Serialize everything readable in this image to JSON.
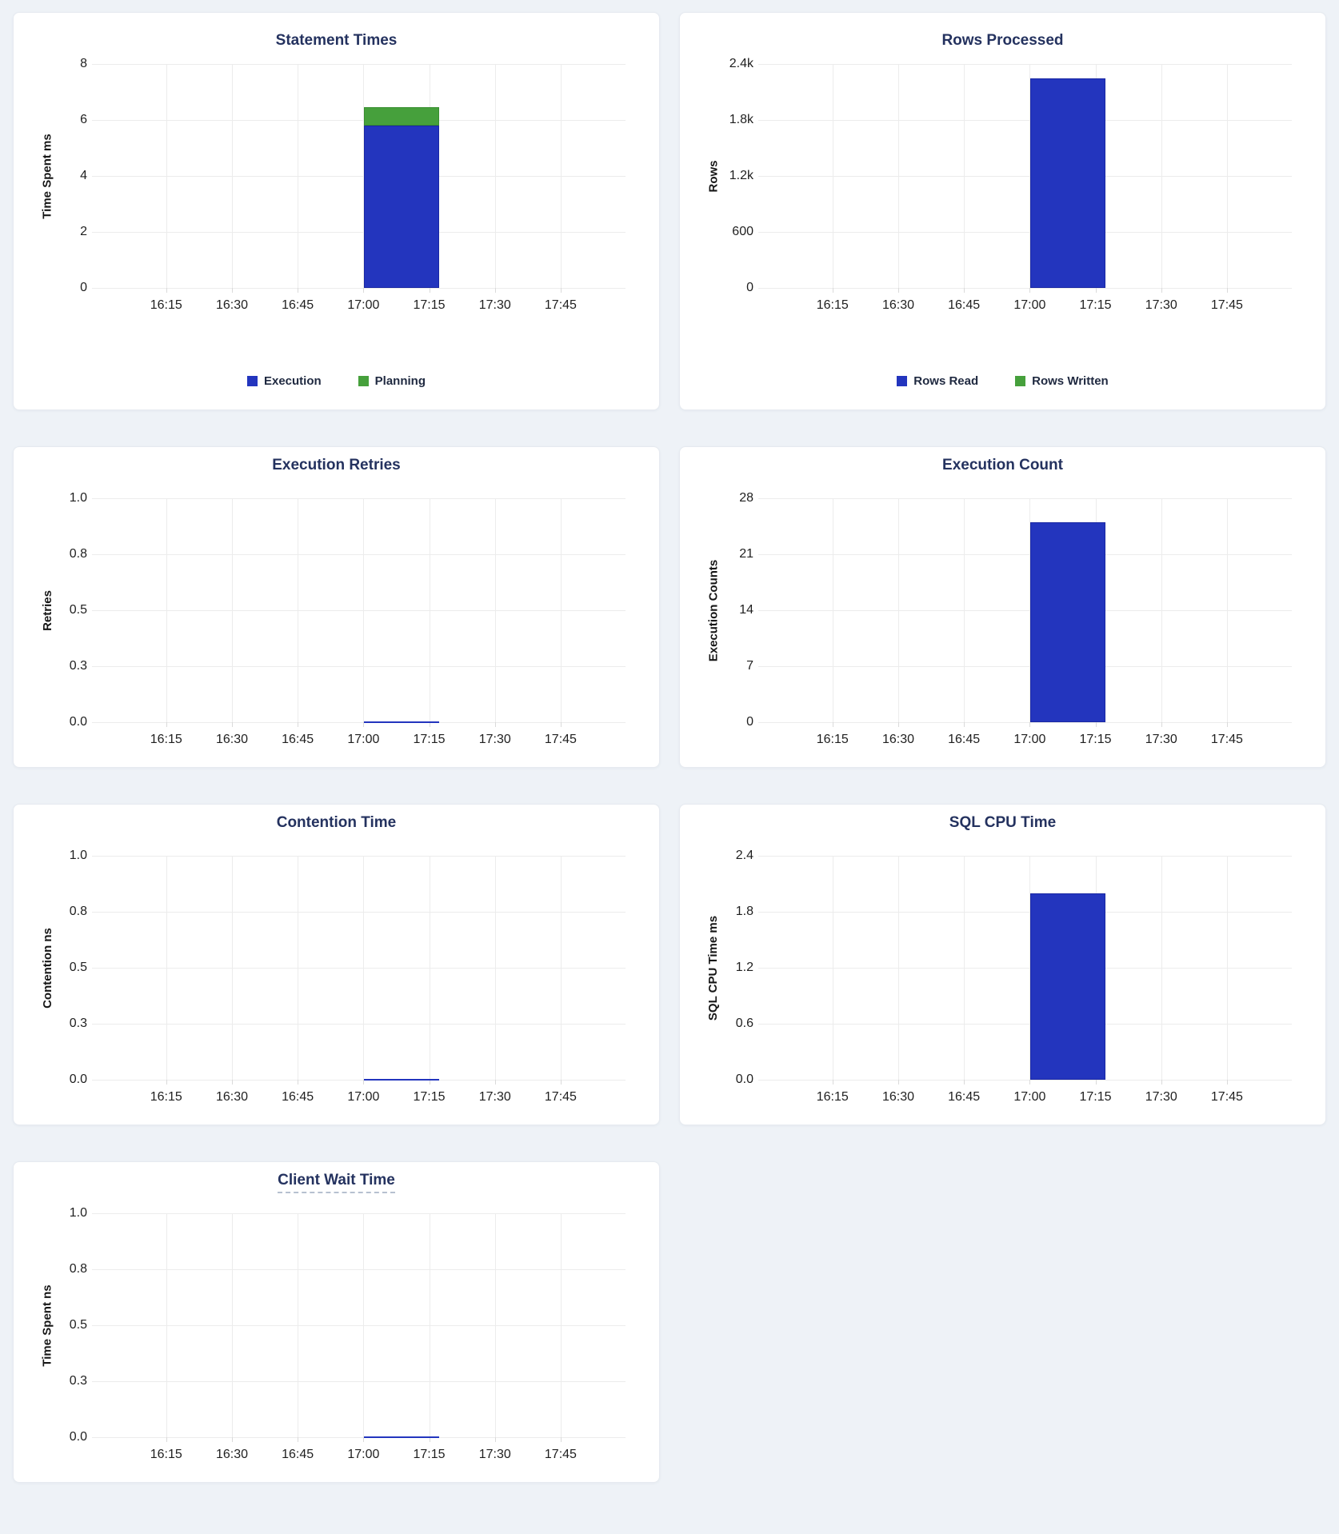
{
  "page": {
    "background": "#eef2f7"
  },
  "colors": {
    "bar_blue": "#2335be",
    "bar_blue_border": "#1a28a3",
    "bar_green": "#46a03c",
    "bar_green_border": "#388e30",
    "title_navy": "#24325f",
    "gridline": "#ececec"
  },
  "chart_data": [
    {
      "type": "bar",
      "title": "Statement Times",
      "ylabel": "Time Spent ms",
      "xlabel": "",
      "y_max": 8,
      "y_ticks": [
        "8",
        "6",
        "4",
        "2",
        "0"
      ],
      "x_ticks": [
        "16:15",
        "16:30",
        "16:45",
        "17:00",
        "17:15",
        "17:30",
        "17:45"
      ],
      "x_start": "17:00",
      "x_end": "17:17",
      "stacked": true,
      "grid": true,
      "legend_position": "bottom",
      "legend": [
        "Execution",
        "Planning"
      ],
      "series": [
        {
          "name": "Execution",
          "value": 5.8,
          "color": "#2335be",
          "border": "#1a28a3"
        },
        {
          "name": "Planning",
          "value": 0.65,
          "color": "#46a03c",
          "border": "#388e30"
        }
      ]
    },
    {
      "type": "bar",
      "title": "Rows Processed",
      "ylabel": "Rows",
      "xlabel": "",
      "y_max": 2400,
      "y_ticks": [
        "2.4k",
        "1.8k",
        "1.2k",
        "600",
        "0"
      ],
      "x_ticks": [
        "16:15",
        "16:30",
        "16:45",
        "17:00",
        "17:15",
        "17:30",
        "17:45"
      ],
      "x_start": "17:00",
      "x_end": "17:17",
      "stacked": true,
      "grid": true,
      "legend_position": "bottom",
      "legend": [
        "Rows Read",
        "Rows Written"
      ],
      "series": [
        {
          "name": "Rows Read",
          "value": 2250,
          "color": "#2335be",
          "border": "#1a28a3"
        },
        {
          "name": "Rows Written",
          "value": 0,
          "color": "#46a03c",
          "border": "#388e30"
        }
      ]
    },
    {
      "type": "line",
      "title": "Execution Retries",
      "ylabel": "Retries",
      "xlabel": "",
      "y_max": 1.0,
      "y_ticks": [
        "1.0",
        "0.8",
        "0.5",
        "0.3",
        "0.0"
      ],
      "x_ticks": [
        "16:15",
        "16:30",
        "16:45",
        "17:00",
        "17:15",
        "17:30",
        "17:45"
      ],
      "x_start": "17:00",
      "x_end": "17:17",
      "grid": true,
      "series": [
        {
          "name": "Retries",
          "value": 0,
          "color": "#2335be"
        }
      ]
    },
    {
      "type": "bar",
      "title": "Execution Count",
      "ylabel": "Execution Counts",
      "xlabel": "",
      "y_max": 28,
      "y_ticks": [
        "28",
        "21",
        "14",
        "7",
        "0"
      ],
      "x_ticks": [
        "16:15",
        "16:30",
        "16:45",
        "17:00",
        "17:15",
        "17:30",
        "17:45"
      ],
      "x_start": "17:00",
      "x_end": "17:17",
      "stacked": false,
      "grid": true,
      "series": [
        {
          "name": "Execution Count",
          "value": 25,
          "color": "#2335be",
          "border": "#1a28a3"
        }
      ]
    },
    {
      "type": "line",
      "title": "Contention Time",
      "ylabel": "Contention ns",
      "xlabel": "",
      "y_max": 1.0,
      "y_ticks": [
        "1.0",
        "0.8",
        "0.5",
        "0.3",
        "0.0"
      ],
      "x_ticks": [
        "16:15",
        "16:30",
        "16:45",
        "17:00",
        "17:15",
        "17:30",
        "17:45"
      ],
      "x_start": "17:00",
      "x_end": "17:17",
      "grid": true,
      "series": [
        {
          "name": "Contention",
          "value": 0,
          "color": "#2335be"
        }
      ]
    },
    {
      "type": "bar",
      "title": "SQL CPU Time",
      "ylabel": "SQL CPU Time ms",
      "xlabel": "",
      "y_max": 2.4,
      "y_ticks": [
        "2.4",
        "1.8",
        "1.2",
        "0.6",
        "0.0"
      ],
      "x_ticks": [
        "16:15",
        "16:30",
        "16:45",
        "17:00",
        "17:15",
        "17:30",
        "17:45"
      ],
      "x_start": "17:00",
      "x_end": "17:17",
      "stacked": false,
      "grid": true,
      "series": [
        {
          "name": "SQL CPU Time",
          "value": 2.0,
          "color": "#2335be",
          "border": "#1a28a3"
        }
      ]
    },
    {
      "type": "line",
      "title": "Client Wait Time",
      "title_underlined": true,
      "ylabel": "Time Spent ns",
      "xlabel": "",
      "y_max": 1.0,
      "y_ticks": [
        "1.0",
        "0.8",
        "0.5",
        "0.3",
        "0.0"
      ],
      "x_ticks": [
        "16:15",
        "16:30",
        "16:45",
        "17:00",
        "17:15",
        "17:30",
        "17:45"
      ],
      "x_start": "17:00",
      "x_end": "17:17",
      "grid": true,
      "series": [
        {
          "name": "Client Wait",
          "value": 0,
          "color": "#2335be"
        }
      ]
    }
  ]
}
